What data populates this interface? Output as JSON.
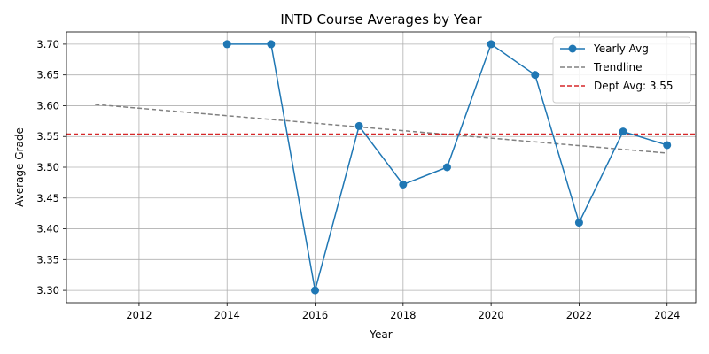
{
  "chart_data": {
    "type": "line",
    "title": "INTD Course Averages by Year",
    "xlabel": "Year",
    "ylabel": "Average Grade",
    "xlim": [
      2010.35,
      2024.65
    ],
    "ylim": [
      3.28,
      3.72
    ],
    "xticks": [
      2012,
      2014,
      2016,
      2018,
      2020,
      2022,
      2024
    ],
    "yticks": [
      "3.30",
      "3.35",
      "3.40",
      "3.45",
      "3.50",
      "3.55",
      "3.60",
      "3.65",
      "3.70"
    ],
    "grid": true,
    "legend_position": "top-right",
    "series": [
      {
        "name": "Yearly Avg",
        "style": "solid-line-circle-markers",
        "color": "#1f77b4",
        "x": [
          2014,
          2015,
          2016,
          2017,
          2018,
          2019,
          2020,
          2021,
          2022,
          2023,
          2024
        ],
        "y": [
          3.7,
          3.7,
          3.3,
          3.567,
          3.472,
          3.5,
          3.7,
          3.65,
          3.41,
          3.558,
          3.536
        ]
      },
      {
        "name": "Trendline",
        "style": "dashed",
        "color": "#808080",
        "x": [
          2011,
          2024
        ],
        "y": [
          3.602,
          3.523
        ]
      },
      {
        "name": "Dept Avg: 3.55",
        "style": "dashed-horizontal",
        "color": "#d62728",
        "value": 3.554
      }
    ]
  }
}
